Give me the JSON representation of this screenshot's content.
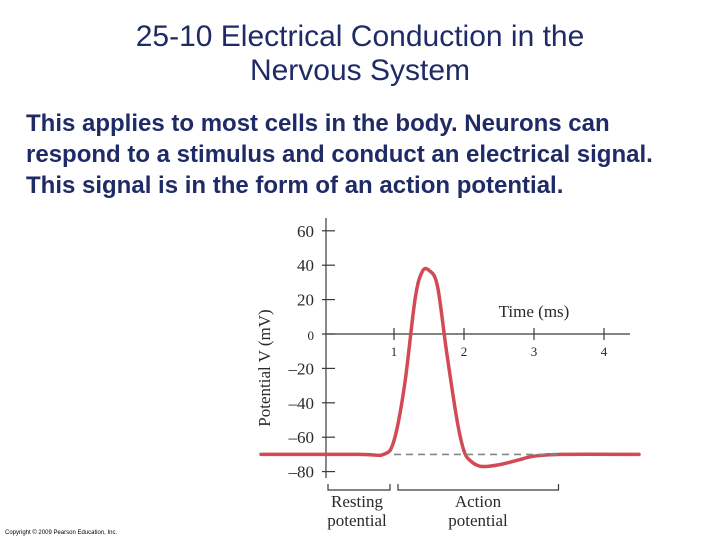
{
  "slide": {
    "title_line1": "25-10 Electrical Conduction in the",
    "title_line2": "Nervous System",
    "body": "This applies to most cells in the body. Neurons can respond to a stimulus and conduct an electrical signal. This signal is in the form of an action potential.",
    "copyright": "Copyright © 2009 Pearson Education, Inc."
  },
  "colors": {
    "title": "#1f2b66",
    "curve": "#d24a55",
    "axis": "#3a3a3a",
    "dashed": "#888888"
  },
  "chart_data": {
    "type": "line",
    "xlabel": "Time (ms)",
    "ylabel": "Potential V (mV)",
    "x_ticks": [
      "1",
      "2",
      "3",
      "4"
    ],
    "y_ticks": [
      "60",
      "40",
      "20",
      "0",
      "–20",
      "–40",
      "–60",
      "–80"
    ],
    "ylim": [
      -80,
      60
    ],
    "series": [
      {
        "x": [
          -0.9,
          0.5,
          0.85,
          1.0,
          1.15,
          1.3,
          1.4,
          1.5,
          1.62,
          1.75,
          1.9,
          2.0,
          2.1,
          2.25,
          2.5,
          2.8,
          3.0,
          3.4,
          4.5
        ],
        "y": [
          -70,
          -70,
          -70,
          -62,
          -30,
          20,
          36,
          37,
          28,
          -10,
          -50,
          -68,
          -74,
          -77,
          -76,
          -73,
          -71,
          -70,
          -70
        ]
      }
    ],
    "resting_level": -70,
    "annotations": {
      "resting": "Resting potential",
      "resting_line1": "Resting",
      "resting_line2": "potential",
      "action_line1": "Action",
      "action_line2": "potential"
    }
  }
}
